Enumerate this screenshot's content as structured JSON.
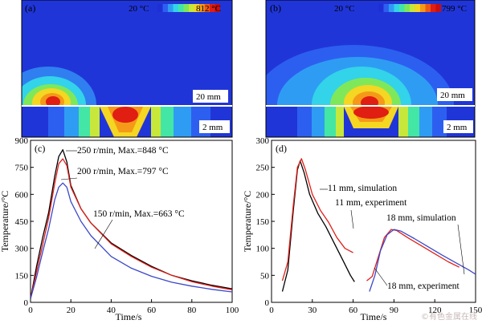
{
  "chart_data": [
    {
      "type": "heatmap",
      "panel": "(a)",
      "colorbar": {
        "min_label": "20 °C",
        "max_label": "812 °C",
        "colors": [
          "#1f2fd6",
          "#2c5ff0",
          "#2f9cf4",
          "#33d3ea",
          "#44e6a6",
          "#7fe85a",
          "#c7e83a",
          "#f5d622",
          "#f59a18",
          "#ee5a14",
          "#e01e12",
          "#c80e0e"
        ]
      },
      "scale_top": "20 mm",
      "scale_bottom": "2 mm",
      "peak_temperature": 812
    },
    {
      "type": "heatmap",
      "panel": "(b)",
      "colorbar": {
        "min_label": "20 °C",
        "max_label": "799 °C",
        "colors": [
          "#1f2fd6",
          "#2c5ff0",
          "#2f9cf4",
          "#33d3ea",
          "#44e6a6",
          "#7fe85a",
          "#c7e83a",
          "#f5d622",
          "#f59a18",
          "#ee5a14",
          "#e01e12",
          "#c80e0e"
        ]
      },
      "scale_top": "20 mm",
      "scale_bottom": "2 mm",
      "peak_temperature": 799
    },
    {
      "type": "line",
      "panel": "(c)",
      "xlabel": "Time/s",
      "ylabel": "Temperature/°C",
      "xlim": [
        0,
        100
      ],
      "ylim": [
        0,
        900
      ],
      "xticks": [
        0,
        20,
        40,
        60,
        80,
        100
      ],
      "yticks": [
        0,
        150,
        300,
        450,
        600,
        750,
        900
      ],
      "series": [
        {
          "name": "250 r/min, Max.=848 °C",
          "color": "#000000",
          "x": [
            0,
            3,
            6,
            9,
            12,
            14,
            16,
            18,
            20,
            25,
            30,
            40,
            50,
            60,
            70,
            80,
            90,
            100
          ],
          "y": [
            20,
            200,
            360,
            500,
            700,
            810,
            848,
            780,
            650,
            520,
            440,
            330,
            260,
            200,
            150,
            120,
            95,
            75
          ]
        },
        {
          "name": "200 r/min, Max.=797 °C",
          "color": "#e0201a",
          "x": [
            0,
            3,
            6,
            9,
            12,
            14,
            16,
            18,
            20,
            25,
            30,
            40,
            50,
            60,
            70,
            80,
            90,
            100
          ],
          "y": [
            20,
            170,
            320,
            470,
            660,
            770,
            797,
            760,
            640,
            520,
            440,
            325,
            255,
            195,
            150,
            115,
            90,
            70
          ]
        },
        {
          "name": "150 r/min, Max.=663 °C",
          "color": "#3b48c8",
          "x": [
            0,
            3,
            6,
            9,
            12,
            14,
            16,
            18,
            20,
            25,
            30,
            40,
            50,
            60,
            70,
            80,
            90,
            100
          ],
          "y": [
            20,
            140,
            280,
            410,
            570,
            640,
            663,
            640,
            560,
            450,
            370,
            255,
            190,
            145,
            112,
            90,
            72,
            58
          ]
        }
      ]
    },
    {
      "type": "line",
      "panel": "(d)",
      "xlabel": "Time/s",
      "ylabel": "Temperature/°C",
      "xlim": [
        0,
        150
      ],
      "ylim": [
        0,
        300
      ],
      "xticks": [
        0,
        30,
        60,
        90,
        120,
        150
      ],
      "yticks": [
        0,
        50,
        100,
        150,
        200,
        250,
        300
      ],
      "series": [
        {
          "name": "11 mm, simulation",
          "color": "#000000",
          "x": [
            8,
            12,
            16,
            19,
            21,
            24,
            28,
            34,
            40,
            46,
            52,
            58,
            61
          ],
          "y": [
            20,
            60,
            170,
            245,
            262,
            240,
            200,
            165,
            140,
            110,
            80,
            50,
            38
          ]
        },
        {
          "name": "11 mm, experiment",
          "color": "#e0201a",
          "x": [
            8,
            12,
            16,
            19,
            22,
            25,
            30,
            36,
            42,
            48,
            54,
            60
          ],
          "y": [
            40,
            75,
            180,
            250,
            266,
            245,
            200,
            170,
            148,
            120,
            100,
            92
          ]
        },
        {
          "name": "18 mm, simulation",
          "color": "#e0201a",
          "x": [
            70,
            74,
            78,
            83,
            88,
            92,
            100,
            110,
            120,
            130,
            138
          ],
          "y": [
            40,
            48,
            80,
            120,
            135,
            133,
            120,
            105,
            90,
            75,
            65
          ]
        },
        {
          "name": "18 mm, experiment",
          "color": "#3b48c8",
          "x": [
            72,
            76,
            80,
            85,
            90,
            95,
            105,
            115,
            125,
            135,
            145,
            150
          ],
          "y": [
            20,
            50,
            95,
            125,
            135,
            132,
            118,
            103,
            88,
            74,
            60,
            52
          ]
        }
      ]
    }
  ],
  "watermark": "©有色金属在线"
}
